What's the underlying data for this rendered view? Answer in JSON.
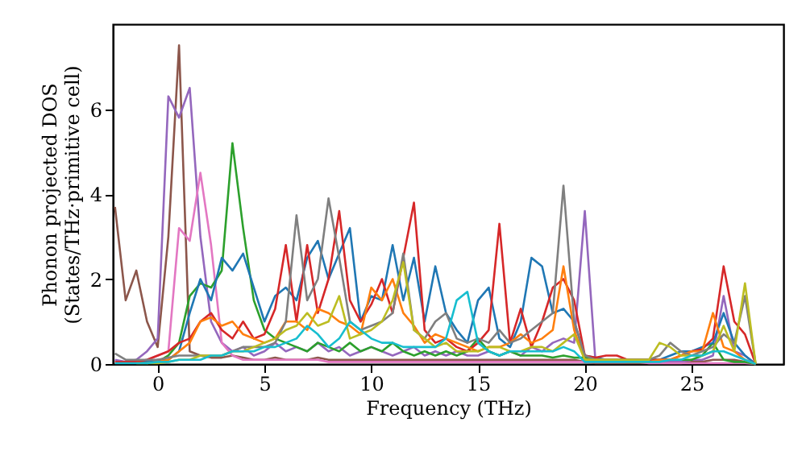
{
  "chart_data": {
    "type": "line",
    "xlabel": "Frequency (THz)",
    "ylabel": "Phonon projected DOS\n(States/THz·primitive cell)",
    "x": [
      -2,
      -1.5,
      -1,
      -0.5,
      0,
      0.5,
      1,
      1.5,
      2,
      2.5,
      3,
      3.5,
      4,
      4.5,
      5,
      5.5,
      6,
      6.5,
      7,
      7.5,
      8,
      8.5,
      9,
      9.5,
      10,
      10.5,
      11,
      11.5,
      12,
      12.5,
      13,
      13.5,
      14,
      14.5,
      15,
      15.5,
      16,
      16.5,
      17,
      17.5,
      18,
      18.5,
      19,
      19.5,
      20,
      20.5,
      21,
      21.5,
      22,
      22.5,
      23,
      23.5,
      24,
      24.5,
      25,
      25.5,
      26,
      26.5,
      27,
      27.5,
      28
    ],
    "series": [
      {
        "color": "#8c564b",
        "values": [
          3.7,
          1.5,
          2.2,
          1.0,
          0.4,
          3.0,
          7.5,
          0.3,
          0.2,
          0.15,
          0.15,
          0.2,
          0.15,
          0.1,
          0.1,
          0.15,
          0.1,
          0.1,
          0.1,
          0.15,
          0.1,
          0.1,
          0.1,
          0.1,
          0.1,
          0.1,
          0.1,
          0.1,
          0.1,
          0.1,
          0.1,
          0.1,
          0.1,
          0.1,
          0.1,
          0.1,
          0.1,
          0.1,
          0.1,
          0.1,
          0.1,
          0.1,
          0.1,
          0.1,
          0.05,
          0.02,
          0.02,
          0.02,
          0.02,
          0.02,
          0.02,
          0.02,
          0.02,
          0.02,
          0.05,
          0.05,
          0.1,
          0.1,
          0.1,
          0.05,
          0
        ]
      },
      {
        "color": "#9467bd",
        "values": [
          0.1,
          0.05,
          0.1,
          0.3,
          0.6,
          6.3,
          5.8,
          6.5,
          3.0,
          1.0,
          0.5,
          0.3,
          0.4,
          0.2,
          0.3,
          0.5,
          0.3,
          0.4,
          0.3,
          0.5,
          0.3,
          0.4,
          0.2,
          0.3,
          0.4,
          0.3,
          0.2,
          0.3,
          0.4,
          0.2,
          0.3,
          0.2,
          0.3,
          0.2,
          0.2,
          0.3,
          0.2,
          0.3,
          0.2,
          0.4,
          0.3,
          0.5,
          0.6,
          0.5,
          3.6,
          0.05,
          0.05,
          0.05,
          0.05,
          0.05,
          0.05,
          0.05,
          0.05,
          0.05,
          0.1,
          0.1,
          0.2,
          1.6,
          0.3,
          0.2,
          0
        ]
      },
      {
        "color": "#e377c2",
        "values": [
          0.05,
          0.05,
          0.05,
          0.1,
          0.2,
          0.3,
          3.2,
          2.9,
          4.5,
          2.8,
          0.5,
          0.2,
          0.1,
          0.1,
          0.1,
          0.1,
          0.1,
          0.1,
          0.1,
          0.1,
          0.05,
          0.05,
          0.05,
          0.05,
          0.05,
          0.05,
          0.05,
          0.05,
          0.05,
          0.05,
          0.05,
          0.05,
          0.05,
          0.05,
          0.05,
          0.05,
          0.05,
          0.05,
          0.05,
          0.05,
          0.05,
          0.05,
          0.05,
          0.05,
          0.05,
          0.05,
          0.05,
          0.05,
          0.05,
          0.05,
          0.02,
          0.02,
          0.02,
          0.02,
          0.02,
          0.02,
          0.02,
          0.02,
          0.02,
          0.02,
          0
        ]
      },
      {
        "color": "#2ca02c",
        "values": [
          null,
          null,
          0.05,
          0.05,
          0.05,
          0.2,
          0.5,
          1.6,
          1.9,
          1.8,
          2.2,
          5.2,
          3.2,
          1.5,
          0.8,
          0.6,
          0.5,
          0.4,
          0.3,
          0.5,
          0.4,
          0.3,
          0.5,
          0.3,
          0.4,
          0.3,
          0.5,
          0.3,
          0.2,
          0.3,
          0.2,
          0.3,
          0.2,
          0.3,
          0.6,
          0.3,
          0.2,
          0.3,
          0.2,
          0.2,
          0.2,
          0.15,
          0.2,
          0.15,
          0.15,
          0.1,
          0.1,
          0.1,
          0.1,
          0.1,
          0.1,
          0.1,
          0.1,
          0.1,
          0.1,
          0.2,
          0.5,
          0.1,
          0.05,
          0.05,
          0
        ]
      },
      {
        "color": "#1f77b4",
        "values": [
          null,
          null,
          0.05,
          0.05,
          0.1,
          0.1,
          0.3,
          1.2,
          2.0,
          1.5,
          2.5,
          2.2,
          2.6,
          1.8,
          1.0,
          1.6,
          1.8,
          1.5,
          2.5,
          2.9,
          2.0,
          2.6,
          3.2,
          1.0,
          1.6,
          1.5,
          2.8,
          1.5,
          2.5,
          1.0,
          2.3,
          1.2,
          0.8,
          0.5,
          1.5,
          1.8,
          0.6,
          0.4,
          1.0,
          2.5,
          2.3,
          1.2,
          1.3,
          1.0,
          0.2,
          0.15,
          0.1,
          0.1,
          0.1,
          0.1,
          0.1,
          0.1,
          0.2,
          0.3,
          0.3,
          0.4,
          0.5,
          1.2,
          0.5,
          0.2,
          0
        ]
      },
      {
        "color": "#d62728",
        "values": [
          0.05,
          0.05,
          0.05,
          0.1,
          0.2,
          0.3,
          0.5,
          0.6,
          1.0,
          1.2,
          0.8,
          0.6,
          1.0,
          0.6,
          0.7,
          1.3,
          2.8,
          1.0,
          2.8,
          1.2,
          2.0,
          3.6,
          1.5,
          1.0,
          1.4,
          2.0,
          1.2,
          2.5,
          3.8,
          0.8,
          0.5,
          0.6,
          0.4,
          0.3,
          0.5,
          0.8,
          3.3,
          0.5,
          1.3,
          0.4,
          1.0,
          1.8,
          2.0,
          1.5,
          0.2,
          0.15,
          0.2,
          0.2,
          0.1,
          0.1,
          0.1,
          0.1,
          0.1,
          0.2,
          0.3,
          0.35,
          0.6,
          2.3,
          1.0,
          0.7,
          0
        ]
      },
      {
        "color": "#ff7f0e",
        "values": [
          null,
          null,
          null,
          0.02,
          0.05,
          0.1,
          0.3,
          0.5,
          1.0,
          1.1,
          0.9,
          1.0,
          0.7,
          0.6,
          0.5,
          0.6,
          1.0,
          1.0,
          0.8,
          1.3,
          1.2,
          1.0,
          0.9,
          0.7,
          1.8,
          1.5,
          2.0,
          1.2,
          0.9,
          0.5,
          0.7,
          0.6,
          0.5,
          0.4,
          0.3,
          0.4,
          0.4,
          0.5,
          0.7,
          0.5,
          0.6,
          0.8,
          2.3,
          0.8,
          0.1,
          0.1,
          0.1,
          0.1,
          0.05,
          0.05,
          0.05,
          0.1,
          0.1,
          0.2,
          0.3,
          0.3,
          1.2,
          0.4,
          0.3,
          0.1,
          0
        ]
      },
      {
        "color": "#7f7f7f",
        "values": [
          0.25,
          0.1,
          0.1,
          0.1,
          0.1,
          0.15,
          0.2,
          0.2,
          0.2,
          0.2,
          0.2,
          0.3,
          0.4,
          0.4,
          0.4,
          0.5,
          1.0,
          3.5,
          1.5,
          2.0,
          3.9,
          2.5,
          1.0,
          0.8,
          0.9,
          1.0,
          1.2,
          2.6,
          0.8,
          0.6,
          1.0,
          1.2,
          0.6,
          0.5,
          0.6,
          0.5,
          0.8,
          0.5,
          0.6,
          0.8,
          1.0,
          1.2,
          4.2,
          1.0,
          0.2,
          0.1,
          0.1,
          0.1,
          0.1,
          0.1,
          0.1,
          0.2,
          0.5,
          0.3,
          0.2,
          0.3,
          0.4,
          0.7,
          0.5,
          1.6,
          0
        ]
      },
      {
        "color": "#bcbd22",
        "values": [
          null,
          null,
          0.02,
          0.02,
          0.02,
          0.05,
          0.1,
          0.1,
          0.2,
          0.2,
          0.2,
          0.3,
          0.3,
          0.4,
          0.5,
          0.6,
          0.8,
          0.9,
          1.2,
          0.9,
          1.0,
          1.6,
          0.6,
          0.7,
          0.8,
          1.0,
          1.5,
          2.4,
          0.8,
          0.6,
          0.4,
          0.5,
          0.3,
          0.3,
          0.3,
          0.4,
          0.4,
          0.3,
          0.3,
          0.4,
          0.4,
          0.3,
          0.5,
          0.7,
          0.1,
          0.1,
          0.1,
          0.1,
          0.1,
          0.1,
          0.1,
          0.5,
          0.4,
          0.2,
          0.2,
          0.2,
          0.3,
          0.9,
          0.3,
          1.9,
          0
        ]
      },
      {
        "color": "#17becf",
        "values": [
          0.02,
          0.02,
          0.02,
          0.02,
          0.05,
          0.05,
          0.1,
          0.1,
          0.1,
          0.2,
          0.2,
          0.3,
          0.3,
          0.3,
          0.4,
          0.4,
          0.5,
          0.6,
          0.9,
          0.7,
          0.4,
          0.6,
          1.0,
          0.8,
          0.6,
          0.5,
          0.5,
          0.4,
          0.4,
          0.4,
          0.4,
          0.6,
          1.5,
          1.7,
          0.5,
          0.3,
          0.2,
          0.3,
          0.3,
          0.3,
          0.3,
          0.3,
          0.4,
          0.3,
          0.05,
          0.05,
          0.05,
          0.05,
          0.05,
          0.05,
          0.05,
          0.05,
          0.1,
          0.1,
          0.2,
          0.2,
          0.3,
          0.3,
          0.2,
          0.1,
          0
        ]
      }
    ],
    "xlim": [
      -2.1,
      29.3
    ],
    "ylim": [
      0,
      8
    ],
    "xticks": [
      0,
      5,
      10,
      15,
      20,
      25
    ],
    "yticks": [
      0,
      2,
      4,
      6
    ],
    "grid": false,
    "legend": false,
    "marker": "none",
    "line_style": "solid"
  }
}
